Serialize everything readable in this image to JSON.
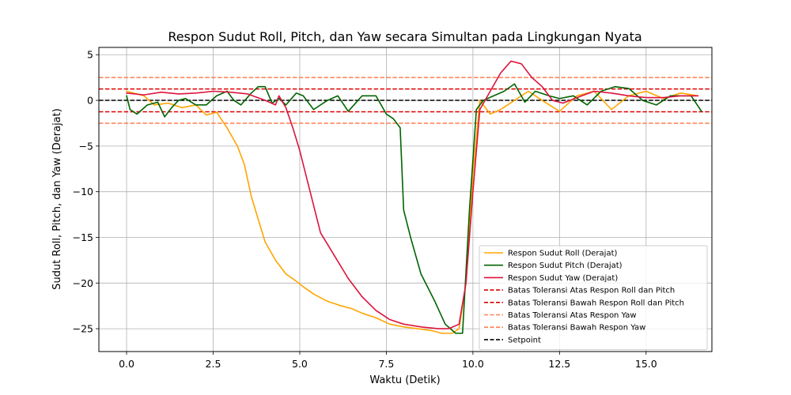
{
  "chart_data": {
    "type": "line",
    "title": "Respon Sudut Roll, Pitch, dan Yaw secara Simultan pada Lingkungan Nyata",
    "xlabel": "Waktu (Detik)",
    "ylabel": "Sudut Roll, Pitch, dan Yaw (Derajat)",
    "xlim": [
      -0.8,
      16.9
    ],
    "ylim": [
      -27.5,
      5.8
    ],
    "xticks": [
      0,
      2.5,
      5,
      7.5,
      10,
      12.5,
      15
    ],
    "xtick_labels": [
      "0.0",
      "2.5",
      "5.0",
      "7.5",
      "10.0",
      "12.5",
      "15.0"
    ],
    "yticks": [
      5,
      0,
      -5,
      -10,
      -15,
      -20,
      -25
    ],
    "ytick_labels": [
      "5",
      "0",
      "−5",
      "−10",
      "−15",
      "−20",
      "−25"
    ],
    "grid": true,
    "legend_position": "bottom-right",
    "series": [
      {
        "name": "Respon Sudut Roll (Derajat)",
        "color": "#ffa500",
        "style": "solid",
        "x": [
          0,
          0.5,
          0.8,
          1.2,
          1.6,
          2.0,
          2.3,
          2.6,
          2.9,
          3.2,
          3.4,
          3.6,
          3.8,
          4.0,
          4.3,
          4.6,
          4.9,
          5.1,
          5.4,
          5.8,
          6.2,
          6.5,
          6.8,
          7.2,
          7.6,
          8.0,
          8.4,
          8.8,
          9.1,
          9.4,
          9.6,
          9.8,
          10.0,
          10.2,
          10.5,
          10.8,
          11.2,
          11.6,
          12.0,
          12.5,
          13.0,
          13.5,
          14.0,
          14.5,
          15.0,
          15.5,
          16.0,
          16.5
        ],
        "y": [
          1.0,
          0.5,
          -0.5,
          -0.3,
          -0.8,
          -0.5,
          -1.6,
          -1.3,
          -3.0,
          -5.0,
          -7.0,
          -10.5,
          -13.0,
          -15.5,
          -17.5,
          -19.0,
          -19.8,
          -20.4,
          -21.2,
          -22.0,
          -22.5,
          -22.8,
          -23.3,
          -23.8,
          -24.5,
          -24.8,
          -25.0,
          -25.2,
          -25.5,
          -25.5,
          -25.0,
          -20.0,
          -8.0,
          0.0,
          -1.5,
          -1.0,
          0.0,
          1.0,
          0.0,
          -1.2,
          0.5,
          1.0,
          -1.0,
          0.5,
          1.0,
          0.2,
          0.8,
          0.5
        ]
      },
      {
        "name": "Respon Sudut Pitch (Derajat)",
        "color": "#006400",
        "style": "solid",
        "x": [
          0,
          0.1,
          0.3,
          0.6,
          0.9,
          1.1,
          1.3,
          1.5,
          1.7,
          2.0,
          2.3,
          2.6,
          2.9,
          3.1,
          3.3,
          3.6,
          3.8,
          4.0,
          4.2,
          4.4,
          4.6,
          4.9,
          5.1,
          5.4,
          5.8,
          6.1,
          6.4,
          6.8,
          7.2,
          7.5,
          7.7,
          7.9,
          8.0,
          8.2,
          8.5,
          8.9,
          9.2,
          9.5,
          9.7,
          9.9,
          10.1,
          10.3,
          10.6,
          10.9,
          11.2,
          11.5,
          11.8,
          12.2,
          12.5,
          12.9,
          13.3,
          13.7,
          14.1,
          14.5,
          14.9,
          15.3,
          15.7,
          16.1,
          16.3,
          16.6
        ],
        "y": [
          0.5,
          -1.0,
          -1.5,
          -0.5,
          -0.2,
          -1.8,
          -0.8,
          0.0,
          0.2,
          -0.5,
          -0.5,
          0.5,
          1.0,
          0.0,
          -0.5,
          0.8,
          1.5,
          1.5,
          -0.3,
          0.2,
          -0.5,
          0.8,
          0.5,
          -1.0,
          0.0,
          0.5,
          -1.2,
          0.5,
          0.5,
          -1.5,
          -2.0,
          -3.0,
          -12.0,
          -15.0,
          -19.0,
          -22.0,
          -24.5,
          -25.5,
          -25.5,
          -12.0,
          -1.0,
          0.0,
          0.5,
          1.0,
          1.8,
          -0.2,
          1.0,
          0.5,
          0.2,
          0.5,
          -0.5,
          1.0,
          1.5,
          1.3,
          0.0,
          -0.5,
          0.5,
          0.5,
          0.5,
          -1.2
        ]
      },
      {
        "name": "Respon Sudut Yaw (Derajat)",
        "color": "#dc143c",
        "style": "solid",
        "x": [
          0,
          0.5,
          1.0,
          1.5,
          2.0,
          2.5,
          3.0,
          3.5,
          4.0,
          4.3,
          4.4,
          4.6,
          4.8,
          5.0,
          5.3,
          5.6,
          6.0,
          6.4,
          6.8,
          7.2,
          7.6,
          8.0,
          8.5,
          9.0,
          9.3,
          9.6,
          9.8,
          10.0,
          10.2,
          10.5,
          10.8,
          11.1,
          11.4,
          11.7,
          12.0,
          12.3,
          12.6,
          13.0,
          13.5,
          14.0,
          14.5,
          15.0,
          15.5,
          16.0,
          16.5
        ],
        "y": [
          0.8,
          0.6,
          0.9,
          0.7,
          0.8,
          1.0,
          0.9,
          0.7,
          0.0,
          -0.5,
          0.5,
          -0.8,
          -3.0,
          -5.5,
          -10.0,
          -14.5,
          -17.0,
          -19.5,
          -21.5,
          -23.0,
          -24.0,
          -24.5,
          -24.8,
          -25.0,
          -25.0,
          -24.5,
          -20.0,
          -10.0,
          -1.0,
          1.0,
          3.0,
          4.3,
          4.0,
          2.5,
          1.5,
          0.0,
          -0.3,
          0.3,
          1.0,
          0.8,
          0.5,
          0.3,
          0.3,
          0.5,
          0.5
        ]
      },
      {
        "name": "Batas Toleransi Atas Respon Roll dan Pitch",
        "color": "#dd0000",
        "style": "dashed",
        "constant": 1.25
      },
      {
        "name": "Batas Toleransi Bawah Respon Roll dan Pitch",
        "color": "#dd0000",
        "style": "dashed",
        "constant": -1.25
      },
      {
        "name": "Batas Toleransi Atas Respon Yaw",
        "color": "#ff7f50",
        "style": "dashed",
        "constant": 2.5
      },
      {
        "name": "Batas Toleransi Bawah Respon Yaw",
        "color": "#ff7f50",
        "style": "dashed",
        "constant": -2.5
      },
      {
        "name": "Setpoint",
        "color": "#000000",
        "style": "dashed",
        "constant": 0
      }
    ]
  }
}
